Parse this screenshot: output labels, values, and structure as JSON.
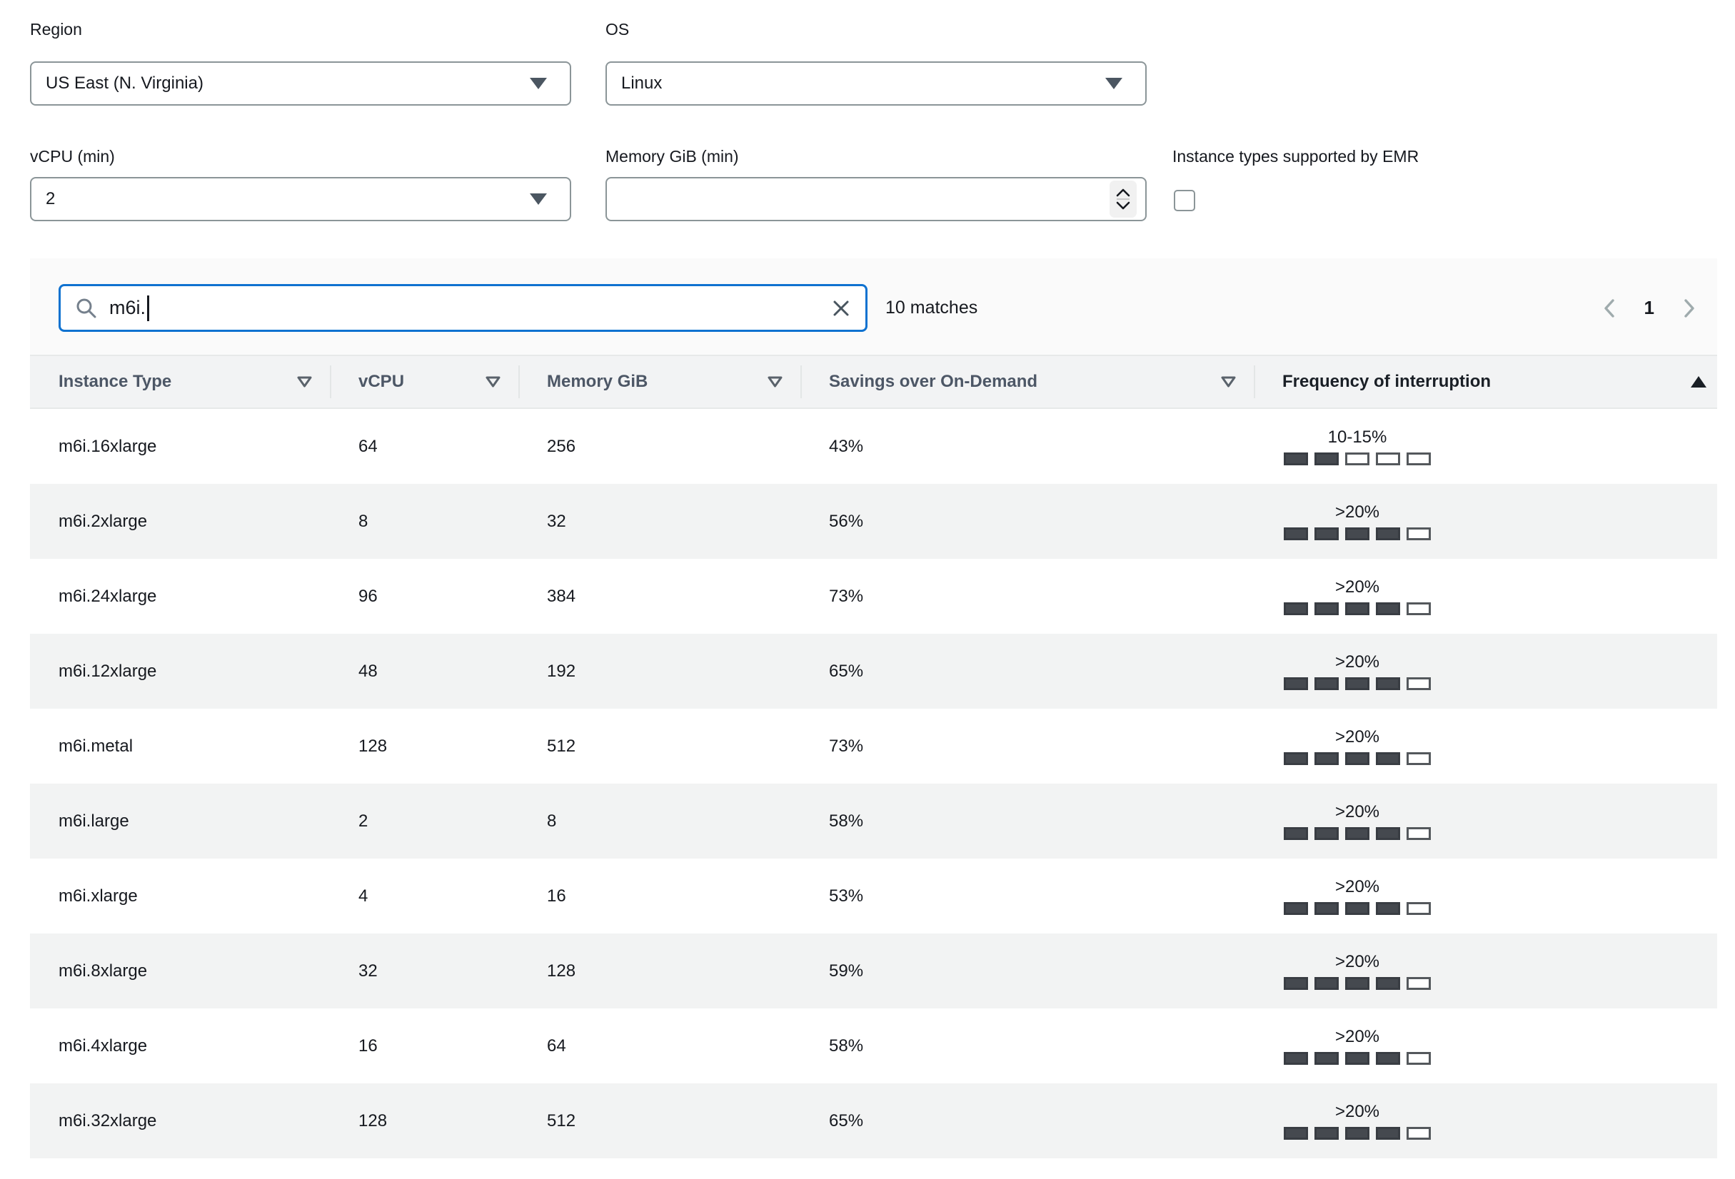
{
  "colors": {
    "accent_blue": "#0f72d0",
    "text_primary": "#16191f",
    "header_text_gray": "#4d5766",
    "panel_bg": "#fafafa",
    "stripe_bg": "#f2f3f3",
    "bar_filled": "#45494f",
    "bar_border": "#54585c",
    "disabled_chevron": "#9fabad"
  },
  "filters": {
    "region": {
      "label": "Region",
      "value": "US East (N. Virginia)"
    },
    "os": {
      "label": "OS",
      "value": "Linux"
    },
    "vcpu_min": {
      "label": "vCPU (min)",
      "value": "2"
    },
    "memory_min": {
      "label": "Memory GiB (min)",
      "value": ""
    },
    "emr": {
      "label": "Instance types supported by EMR",
      "checked": false
    }
  },
  "search": {
    "value": "m6i.",
    "matches": "10 matches"
  },
  "pagination": {
    "page": "1"
  },
  "table": {
    "headers": {
      "instance_type": "Instance Type",
      "vcpu": "vCPU",
      "memory": "Memory GiB",
      "savings": "Savings over On-Demand",
      "frequency": "Frequency of interruption"
    },
    "sorted_column": "frequency",
    "sort_direction": "ascending",
    "bars_total": 5,
    "rows": [
      {
        "instance_type": "m6i.16xlarge",
        "vcpu": "64",
        "memory_gib": "256",
        "savings": "43%",
        "interruption_label": "10-15%",
        "interruption_level": 2
      },
      {
        "instance_type": "m6i.2xlarge",
        "vcpu": "8",
        "memory_gib": "32",
        "savings": "56%",
        "interruption_label": ">20%",
        "interruption_level": 4
      },
      {
        "instance_type": "m6i.24xlarge",
        "vcpu": "96",
        "memory_gib": "384",
        "savings": "73%",
        "interruption_label": ">20%",
        "interruption_level": 4
      },
      {
        "instance_type": "m6i.12xlarge",
        "vcpu": "48",
        "memory_gib": "192",
        "savings": "65%",
        "interruption_label": ">20%",
        "interruption_level": 4
      },
      {
        "instance_type": "m6i.metal",
        "vcpu": "128",
        "memory_gib": "512",
        "savings": "73%",
        "interruption_label": ">20%",
        "interruption_level": 4
      },
      {
        "instance_type": "m6i.large",
        "vcpu": "2",
        "memory_gib": "8",
        "savings": "58%",
        "interruption_label": ">20%",
        "interruption_level": 4
      },
      {
        "instance_type": "m6i.xlarge",
        "vcpu": "4",
        "memory_gib": "16",
        "savings": "53%",
        "interruption_label": ">20%",
        "interruption_level": 4
      },
      {
        "instance_type": "m6i.8xlarge",
        "vcpu": "32",
        "memory_gib": "128",
        "savings": "59%",
        "interruption_label": ">20%",
        "interruption_level": 4
      },
      {
        "instance_type": "m6i.4xlarge",
        "vcpu": "16",
        "memory_gib": "64",
        "savings": "58%",
        "interruption_label": ">20%",
        "interruption_level": 4
      },
      {
        "instance_type": "m6i.32xlarge",
        "vcpu": "128",
        "memory_gib": "512",
        "savings": "65%",
        "interruption_label": ">20%",
        "interruption_level": 4
      }
    ]
  }
}
